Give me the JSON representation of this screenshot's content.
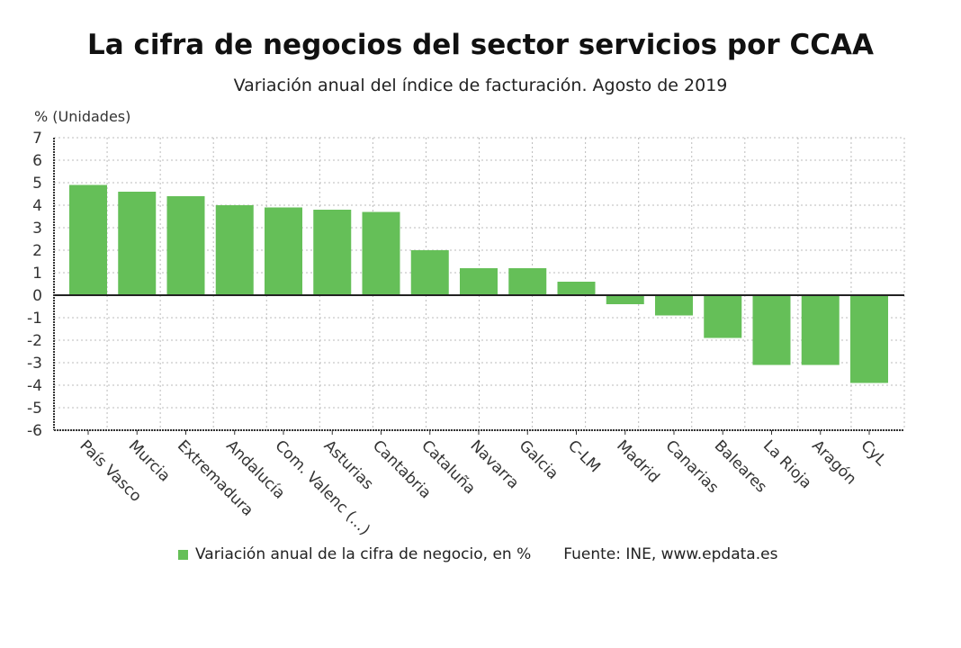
{
  "chart_data": {
    "type": "bar",
    "title": "La cifra de negocios del sector servicios por CCAA",
    "subtitle": "Variación anual del índice de facturación. Agosto de 2019",
    "ylabel": "% (Unidades)",
    "xlabel": "",
    "ylim": [
      -6,
      7
    ],
    "yticks": [
      "7",
      "6",
      "5",
      "4",
      "3",
      "2",
      "1",
      "0",
      "-1",
      "-2",
      "-3",
      "-4",
      "-5",
      "-6"
    ],
    "grid": true,
    "categories": [
      "País Vasco",
      "Murcia",
      "Extremadura",
      "Andalucía",
      "Com. Valenc (...)",
      "Asturias",
      "Cantabria",
      "Cataluña",
      "Navarra",
      "Galcia",
      "C-LM",
      "Madrid",
      "Canarias",
      "Baleares",
      "La Rioja",
      "Aragón",
      "CyL"
    ],
    "series": [
      {
        "name": "Variación anual de la cifra de negocio, en %",
        "values": [
          4.9,
          4.6,
          4.4,
          4.0,
          3.9,
          3.8,
          3.7,
          2.0,
          1.2,
          1.2,
          0.6,
          -0.4,
          -0.9,
          -1.9,
          -3.1,
          -3.1,
          -3.9
        ],
        "color": "#65bf58"
      }
    ],
    "legend_position": "bottom",
    "source": "Fuente: INE, www.epdata.es"
  }
}
